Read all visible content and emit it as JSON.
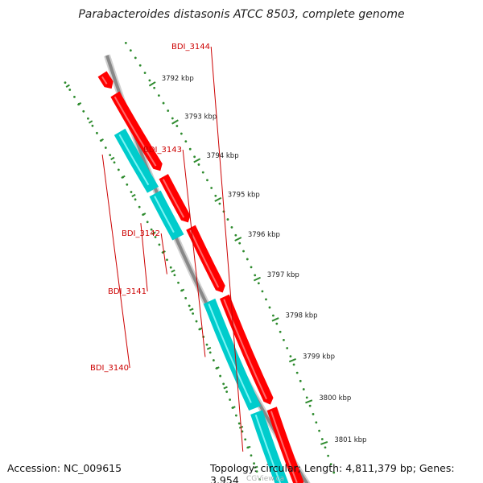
{
  "title": "Parabacteroides distasonis ATCC 8503, complete genome",
  "accession": "Accession: NC_009615",
  "summary": "Topology: circular; Length: 4,811,379 bp; Genes: 3,954",
  "watermark": "CGView.ca",
  "colors": {
    "backbone": "#888888",
    "forward_cds": "#ff0000",
    "reverse_cds": "#00cccc",
    "gene_label": "#cc0000",
    "ticks": "#2e8b2e",
    "tick_label": "#222222"
  },
  "ruler": {
    "unit": "kbp",
    "major_ticks": [
      3792,
      3793,
      3794,
      3795,
      3796,
      3797,
      3798,
      3799,
      3800,
      3801
    ],
    "labels": [
      "3792 kbp",
      "3793 kbp",
      "3794 kbp",
      "3795 kbp",
      "3796 kbp",
      "3797 kbp",
      "3798 kbp",
      "3799 kbp",
      "3800 kbp",
      "3801 kbp"
    ]
  },
  "gene_labels": [
    "BDI_3144",
    "BDI_3143",
    "BDI_3142",
    "BDI_3141",
    "BDI_3140"
  ],
  "features": {
    "forward": [
      {
        "start": 3791.2,
        "end": 3791.6
      },
      {
        "start": 3791.75,
        "end": 3793.8
      },
      {
        "start": 3793.95,
        "end": 3795.15
      },
      {
        "start": 3795.28,
        "end": 3796.95
      },
      {
        "start": 3797.05,
        "end": 3799.75
      },
      {
        "start": 3799.85,
        "end": 3801.8
      }
    ],
    "reverse": [
      {
        "start": 3792.55,
        "end": 3794.1
      },
      {
        "start": 3794.2,
        "end": 3795.35
      },
      {
        "start": 3797.0,
        "end": 3799.7
      },
      {
        "start": 3799.8,
        "end": 3801.8
      }
    ]
  }
}
